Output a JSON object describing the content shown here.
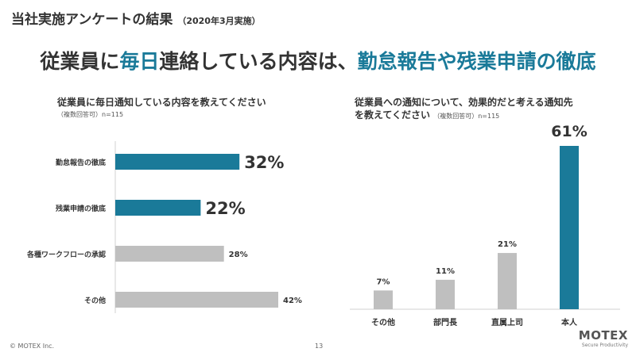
{
  "slide": {
    "title": "当社実施アンケートの結果",
    "title_note": "（2020年3月実施）",
    "headline_prefix": "従業員に",
    "headline_hl1": "毎日",
    "headline_mid": "連絡している内容は、",
    "headline_hl2": "勤怠報告や残業申請の徹底"
  },
  "left_question": {
    "title": "従業員に毎日通知している内容を教えてください",
    "note": "（複数回答可）n=115"
  },
  "right_question": {
    "line1": "従業員への通知について、効果的だと考える通知先",
    "line2": "を教えてください",
    "note": "（複数回答可）n=115"
  },
  "footer": {
    "copyright": "© MOTEX Inc.",
    "page": "13",
    "logo": "MOTEX",
    "tagline": "Secure Productivity"
  },
  "colors": {
    "highlight": "#1a7a99",
    "neutral": "#bfbfbf"
  },
  "chart_data": [
    {
      "type": "bar",
      "orientation": "horizontal",
      "categories": [
        "勤怠報告の徹底",
        "残業申請の徹底",
        "各種ワークフローの承認",
        "その他"
      ],
      "values": [
        32,
        22,
        28,
        42
      ],
      "labels": [
        "32%",
        "22%",
        "28%",
        "42%"
      ],
      "highlighted": [
        true,
        true,
        false,
        false
      ],
      "unit": "%"
    },
    {
      "type": "bar",
      "orientation": "vertical",
      "categories": [
        "その他",
        "部門長",
        "直属上司",
        "本人"
      ],
      "values": [
        7,
        11,
        21,
        61
      ],
      "labels": [
        "7%",
        "11%",
        "21%",
        "61%"
      ],
      "highlighted": [
        false,
        false,
        false,
        true
      ],
      "unit": "%"
    }
  ]
}
